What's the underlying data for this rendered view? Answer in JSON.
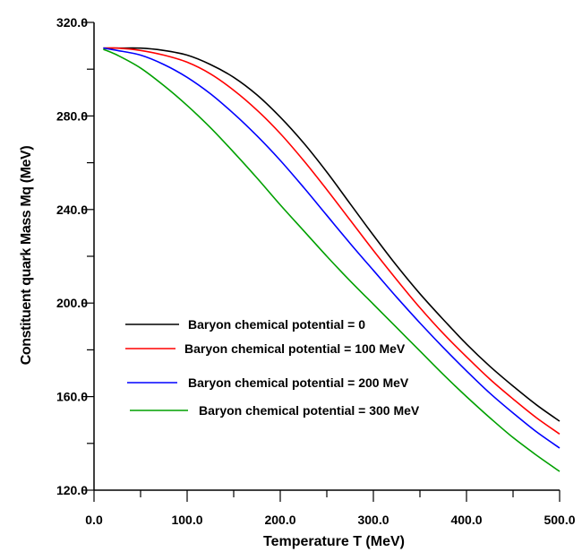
{
  "chart_data": {
    "type": "line",
    "title": "",
    "xlabel": "Temperature T (MeV)",
    "ylabel": "Constituent quark Mass Mq (MeV)",
    "xlim": [
      0,
      500
    ],
    "ylim": [
      120,
      320
    ],
    "xticks": [
      0,
      100,
      200,
      300,
      400,
      500
    ],
    "xtick_labels": [
      "0.0",
      "100.0",
      "200.0",
      "300.0",
      "400.0",
      "500.0"
    ],
    "yticks": [
      120,
      160,
      200,
      240,
      280,
      320
    ],
    "ytick_labels": [
      "120.0",
      "160.0",
      "200.0",
      "240.0",
      "280.0",
      "320.0"
    ],
    "grid": false,
    "legend_position": "lower-left",
    "series": [
      {
        "name": "Baryon chemical potential = 0",
        "color": "#000000",
        "x": [
          10,
          25,
          50,
          75,
          100,
          125,
          150,
          175,
          200,
          225,
          250,
          275,
          300,
          325,
          350,
          375,
          400,
          425,
          450,
          475,
          500
        ],
        "y": [
          309,
          309,
          309,
          308,
          306,
          302,
          296.5,
          289,
          279.5,
          268.5,
          256,
          242.5,
          229,
          216,
          204,
          193,
          182.5,
          173,
          164.5,
          156.5,
          149.5
        ]
      },
      {
        "name": "Baryon chemical potential = 100 MeV",
        "color": "#ff0000",
        "x": [
          10,
          25,
          50,
          75,
          100,
          125,
          150,
          175,
          200,
          225,
          250,
          275,
          300,
          325,
          350,
          375,
          400,
          425,
          450,
          475,
          500
        ],
        "y": [
          309,
          309,
          308,
          306,
          303,
          298,
          291,
          282.5,
          272.5,
          261,
          248.5,
          235.5,
          222.5,
          210,
          198,
          187,
          177,
          167.5,
          159,
          151,
          144
        ]
      },
      {
        "name": "Baryon chemical potential = 200 MeV",
        "color": "#0000ff",
        "x": [
          10,
          25,
          50,
          75,
          100,
          125,
          150,
          175,
          200,
          225,
          250,
          275,
          300,
          325,
          350,
          375,
          400,
          425,
          450,
          475,
          500
        ],
        "y": [
          309,
          308,
          306,
          302,
          296.5,
          289.5,
          281,
          271.5,
          261,
          249.5,
          237.5,
          225.5,
          214,
          202.5,
          191.5,
          181,
          171,
          161.5,
          153,
          145,
          138
        ]
      },
      {
        "name": "Baryon chemical potential = 300 MeV",
        "color": "#00a000",
        "x": [
          10,
          25,
          50,
          75,
          100,
          125,
          150,
          175,
          200,
          225,
          250,
          275,
          300,
          325,
          350,
          375,
          400,
          425,
          450,
          475,
          500
        ],
        "y": [
          308.5,
          306,
          300.5,
          293,
          284.5,
          275,
          264.5,
          253.5,
          242,
          231,
          220,
          209.5,
          199.5,
          189.5,
          179.5,
          169.5,
          160,
          151,
          142.5,
          135,
          128
        ]
      }
    ]
  }
}
